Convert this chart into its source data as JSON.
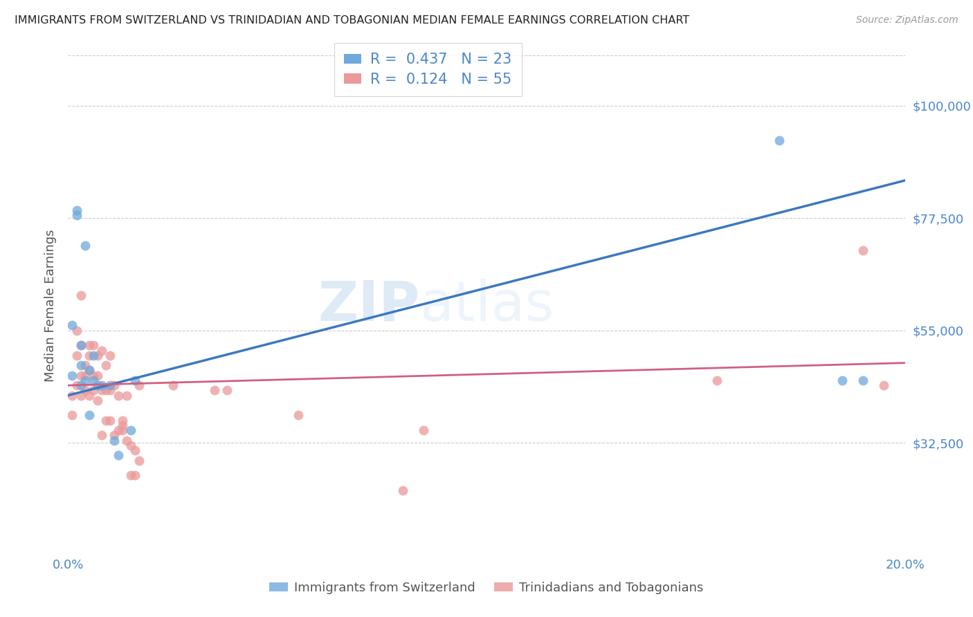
{
  "title": "IMMIGRANTS FROM SWITZERLAND VS TRINIDADIAN AND TOBAGONIAN MEDIAN FEMALE EARNINGS CORRELATION CHART",
  "source": "Source: ZipAtlas.com",
  "ylabel": "Median Female Earnings",
  "xlim": [
    0.0,
    0.2
  ],
  "ylim": [
    10000,
    110000
  ],
  "yticks": [
    32500,
    55000,
    77500,
    100000
  ],
  "ytick_labels": [
    "$32,500",
    "$55,000",
    "$77,500",
    "$100,000"
  ],
  "xticks": [
    0.0,
    0.025,
    0.05,
    0.075,
    0.1,
    0.125,
    0.15,
    0.175,
    0.2
  ],
  "xtick_labels_show": [
    "0.0%",
    "20.0%"
  ],
  "swiss_color": "#6fa8dc",
  "tnt_color": "#ea9999",
  "swiss_line_color": "#3d78c0",
  "tnt_line_color": "#d06080",
  "R_swiss": 0.437,
  "N_swiss": 23,
  "R_tnt": 0.124,
  "N_tnt": 55,
  "legend_label_swiss": "Immigrants from Switzerland",
  "legend_label_tnt": "Trinidadians and Tobagonians",
  "watermark_zip": "ZIP",
  "watermark_atlas": "atlas",
  "swiss_line_x0": 0.0,
  "swiss_line_y0": 42000,
  "swiss_line_x1": 0.2,
  "swiss_line_y1": 85000,
  "tnt_line_x0": 0.0,
  "tnt_line_y0": 44000,
  "tnt_line_x1": 0.2,
  "tnt_line_y1": 48500,
  "swiss_x": [
    0.001,
    0.001,
    0.002,
    0.002,
    0.003,
    0.003,
    0.003,
    0.004,
    0.004,
    0.005,
    0.005,
    0.006,
    0.006,
    0.007,
    0.008,
    0.01,
    0.011,
    0.012,
    0.015,
    0.016,
    0.17,
    0.185,
    0.19
  ],
  "swiss_y": [
    46000,
    56000,
    78000,
    79000,
    52000,
    44000,
    48000,
    45000,
    72000,
    47000,
    38000,
    50000,
    45000,
    44000,
    44000,
    44000,
    33000,
    30000,
    35000,
    45000,
    93000,
    45000,
    45000
  ],
  "tnt_x": [
    0.001,
    0.001,
    0.002,
    0.002,
    0.002,
    0.003,
    0.003,
    0.003,
    0.003,
    0.004,
    0.004,
    0.004,
    0.005,
    0.005,
    0.005,
    0.005,
    0.006,
    0.006,
    0.006,
    0.007,
    0.007,
    0.007,
    0.008,
    0.008,
    0.008,
    0.009,
    0.009,
    0.009,
    0.01,
    0.01,
    0.01,
    0.011,
    0.011,
    0.012,
    0.012,
    0.013,
    0.013,
    0.013,
    0.014,
    0.014,
    0.015,
    0.015,
    0.016,
    0.016,
    0.017,
    0.017,
    0.025,
    0.035,
    0.038,
    0.055,
    0.08,
    0.085,
    0.155,
    0.19,
    0.195
  ],
  "tnt_y": [
    42000,
    38000,
    55000,
    50000,
    44000,
    62000,
    52000,
    46000,
    42000,
    48000,
    46000,
    43000,
    52000,
    50000,
    47000,
    42000,
    52000,
    46000,
    43000,
    50000,
    46000,
    41000,
    51000,
    43000,
    34000,
    48000,
    43000,
    37000,
    50000,
    43000,
    37000,
    44000,
    34000,
    42000,
    35000,
    37000,
    36000,
    35000,
    42000,
    33000,
    32000,
    26000,
    31000,
    26000,
    44000,
    29000,
    44000,
    43000,
    43000,
    38000,
    23000,
    35000,
    45000,
    71000,
    44000
  ],
  "grid_color": "#cccccc",
  "tick_color": "#4a86c8",
  "title_color": "#222222",
  "source_color": "#999999",
  "ylabel_color": "#555555",
  "label_color_swiss": "#4a86c8",
  "label_color_tnt": "#cc6688"
}
